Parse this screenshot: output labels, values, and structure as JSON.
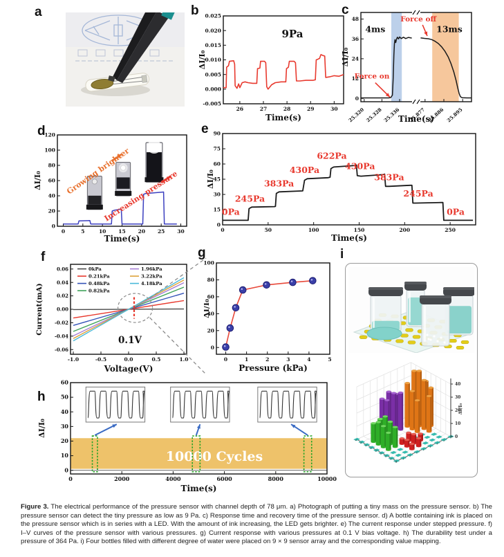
{
  "caption": {
    "label": "Figure 3.",
    "text": "  The electrical performance of the pressure sensor with channel depth of 78 μm. a) Photograph of putting a tiny mass on the pressure sensor. b) The pressure sensor can detect the tiny pressure as low as 9 Pa. c) Response time and recovery time of the pressure sensor. d) A bottle containing ink is placed on the pressure sensor which is in series with a LED. With the amount of ink increasing, the LED gets brighter. e) The current response under stepped pressure. f) I–V curves of the pressure sensor with various pressures. g) Current response with various pressures at 0.1 V bias voltage. h) The durability test under a pressure of 364 Pa. i) Four bottles filled with different degree of water were placed on 9 × 9 sensor array and the corresponding value mapping."
  },
  "panel_labels": {
    "a": "a",
    "b": "b",
    "c": "c",
    "d": "d",
    "e": "e",
    "f": "f",
    "g": "g",
    "h": "h",
    "i": "i"
  },
  "chart_data": [
    {
      "panel": "b",
      "type": "line",
      "title": "9Pa",
      "xlabel": "Time(s)",
      "ylabel": "ΔI/I₀",
      "xlim": [
        25.3,
        30.4
      ],
      "ylim": [
        -0.005,
        0.025
      ],
      "xticks": [
        26,
        27,
        28,
        29,
        30
      ],
      "yticks": [
        -0.005,
        0,
        0.005,
        0.01,
        0.015,
        0.02,
        0.025
      ],
      "ytick_labels": [
        "-0.005",
        "0.000",
        "0.005",
        "0.010",
        "0.015",
        "0.020",
        "0.025"
      ],
      "color": "#e8392e",
      "points": [
        [
          25.3,
          0.0005
        ],
        [
          25.42,
          0.0005
        ],
        [
          25.44,
          0.0075
        ],
        [
          25.52,
          0.008
        ],
        [
          25.56,
          0.0095
        ],
        [
          25.74,
          0.0097
        ],
        [
          25.78,
          0.0085
        ],
        [
          25.8,
          0.0012
        ],
        [
          25.88,
          0.0003
        ],
        [
          25.95,
          0.0018
        ],
        [
          26.0,
          0.0005
        ],
        [
          26.1,
          0.0022
        ],
        [
          26.22,
          0.0025
        ],
        [
          26.35,
          0.0022
        ],
        [
          26.55,
          0.002
        ],
        [
          26.72,
          0.002
        ],
        [
          26.75,
          0.007
        ],
        [
          26.85,
          0.0072
        ],
        [
          26.88,
          0.0095
        ],
        [
          27.05,
          0.0095
        ],
        [
          27.1,
          0.009
        ],
        [
          27.14,
          0.0008
        ],
        [
          27.2,
          0.0
        ],
        [
          27.35,
          0.0015
        ],
        [
          27.5,
          0.0022
        ],
        [
          27.75,
          0.0025
        ],
        [
          27.95,
          0.0025
        ],
        [
          27.98,
          0.007
        ],
        [
          28.06,
          0.0075
        ],
        [
          28.1,
          0.0095
        ],
        [
          28.3,
          0.0095
        ],
        [
          28.36,
          0.009
        ],
        [
          28.4,
          0.0028
        ],
        [
          28.55,
          0.0028
        ],
        [
          28.8,
          0.003
        ],
        [
          29.1,
          0.003
        ],
        [
          29.2,
          0.0032
        ],
        [
          29.24,
          0.01
        ],
        [
          29.3,
          0.0102
        ],
        [
          29.38,
          0.0105
        ],
        [
          29.44,
          0.0118
        ],
        [
          29.52,
          0.0115
        ],
        [
          29.6,
          0.0113
        ],
        [
          29.64,
          0.004
        ],
        [
          29.8,
          0.0042
        ],
        [
          30.0,
          0.0046
        ],
        [
          30.2,
          0.0044
        ],
        [
          30.4,
          0.005
        ]
      ]
    },
    {
      "panel": "c",
      "type": "line-broken-axis",
      "xlabel": "Time(s)",
      "ylabel": "ΔI/I₀",
      "ylim": [
        -2,
        52
      ],
      "yticks": [
        0,
        12,
        24,
        36,
        48
      ],
      "xtick_labels": [
        "25.320",
        "25.328",
        "25.336",
        "25.877",
        "25.886",
        "25.895"
      ],
      "xticks_fx": [
        0.03,
        0.19,
        0.35,
        0.58,
        0.75,
        0.92
      ],
      "rise_time_label": "4ms",
      "fall_time_label": "13ms",
      "force_on_label": "Force on",
      "force_off_label": "Force off",
      "line_color": "#1a1a1a",
      "annotation_color": "#e8392e",
      "regions": [
        {
          "fx0": 0.275,
          "fx1": 0.37,
          "color": "#bcd0ea"
        },
        {
          "fx0": 0.645,
          "fx1": 0.885,
          "color": "#f6c79c"
        }
      ],
      "seg1": [
        [
          0,
          0.3
        ],
        [
          0.25,
          0.3
        ],
        [
          0.27,
          0.5
        ],
        [
          0.285,
          2
        ],
        [
          0.292,
          12
        ],
        [
          0.298,
          26
        ],
        [
          0.303,
          33
        ],
        [
          0.308,
          35.5
        ],
        [
          0.315,
          33.8
        ],
        [
          0.322,
          35.8
        ],
        [
          0.33,
          37
        ],
        [
          0.34,
          36
        ],
        [
          0.35,
          37.2
        ],
        [
          0.365,
          36.2
        ],
        [
          0.385,
          37
        ],
        [
          0.405,
          36.2
        ],
        [
          0.43,
          36.9
        ],
        [
          0.46,
          36.5
        ]
      ],
      "seg2": [
        [
          0.54,
          36.6
        ],
        [
          0.575,
          36.3
        ],
        [
          0.61,
          36.1
        ],
        [
          0.64,
          35.6
        ],
        [
          0.67,
          34.6
        ],
        [
          0.7,
          33.2
        ],
        [
          0.73,
          31.2
        ],
        [
          0.76,
          28.5
        ],
        [
          0.79,
          25
        ],
        [
          0.815,
          21
        ],
        [
          0.84,
          16
        ],
        [
          0.86,
          11
        ],
        [
          0.875,
          6.5
        ],
        [
          0.888,
          3
        ],
        [
          0.9,
          1
        ],
        [
          0.915,
          0.4
        ],
        [
          0.96,
          0.3
        ],
        [
          1.0,
          0.3
        ]
      ]
    },
    {
      "panel": "d",
      "type": "line",
      "xlabel": "Time(s)",
      "ylabel": "ΔI/I₀",
      "xlim": [
        -1.5,
        31.5
      ],
      "ylim": [
        0,
        120
      ],
      "xticks": [
        0,
        5,
        10,
        15,
        20,
        25,
        30
      ],
      "yticks": [
        0,
        20,
        40,
        60,
        80,
        100,
        120
      ],
      "color": "#3b3fbf",
      "points": [
        [
          0,
          3
        ],
        [
          3.8,
          3
        ],
        [
          4.0,
          7
        ],
        [
          6.8,
          7.5
        ],
        [
          7.0,
          3
        ],
        [
          12.3,
          3
        ],
        [
          12.5,
          20
        ],
        [
          13,
          21
        ],
        [
          14.8,
          22.5
        ],
        [
          15,
          3
        ],
        [
          20.3,
          3
        ],
        [
          20.5,
          42
        ],
        [
          21,
          43
        ],
        [
          25.6,
          45
        ],
        [
          25.8,
          3
        ],
        [
          29,
          3
        ]
      ],
      "annotations": [
        {
          "text": "Growing brighter",
          "color": "#e8702d"
        },
        {
          "text": "Increasing pressure",
          "color": "#e8392e"
        }
      ],
      "bottles": [
        {
          "cx": 8,
          "y0": 22,
          "y1": 66,
          "mode": "dim"
        },
        {
          "cx": 15.3,
          "y0": 40,
          "y1": 84,
          "mode": "medium"
        },
        {
          "cx": 23.2,
          "y0": 58,
          "y1": 110,
          "mode": "bright"
        }
      ]
    },
    {
      "panel": "e",
      "type": "line",
      "xlabel": "Time(s)",
      "ylabel": "ΔI/I₀",
      "xlim": [
        0,
        278
      ],
      "ylim": [
        0,
        90
      ],
      "xticks": [
        0,
        50,
        100,
        150,
        200,
        250
      ],
      "yticks": [
        0,
        15,
        30,
        45,
        60,
        75,
        90
      ],
      "color": "#1a1a1a",
      "label_color": "#e8392e",
      "points": [
        [
          0,
          4.5
        ],
        [
          28,
          4.5
        ],
        [
          29,
          16
        ],
        [
          32,
          17.5
        ],
        [
          57,
          18
        ],
        [
          58,
          18.2
        ],
        [
          59,
          31
        ],
        [
          62,
          32.5
        ],
        [
          88,
          33.5
        ],
        [
          90,
          44
        ],
        [
          93,
          45.5
        ],
        [
          116,
          46.5
        ],
        [
          118,
          47
        ],
        [
          119,
          55.5
        ],
        [
          122,
          57
        ],
        [
          145,
          58.5
        ],
        [
          147,
          59
        ],
        [
          148,
          48.5
        ],
        [
          152,
          48
        ],
        [
          176,
          49.5
        ],
        [
          178,
          50
        ],
        [
          179,
          38
        ],
        [
          183,
          38
        ],
        [
          206,
          39
        ],
        [
          208,
          39
        ],
        [
          209,
          21.5
        ],
        [
          212,
          21.5
        ],
        [
          240,
          22
        ],
        [
          242,
          22
        ],
        [
          243,
          4.5
        ],
        [
          246,
          4.5
        ],
        [
          275,
          4.5
        ]
      ],
      "step_labels": [
        {
          "text": "0Pa",
          "x": 9,
          "y": 10
        },
        {
          "text": "245Pa",
          "x": 30,
          "y": 23
        },
        {
          "text": "383Pa",
          "x": 62,
          "y": 38
        },
        {
          "text": "430Pa",
          "x": 90,
          "y": 51
        },
        {
          "text": "622Pa",
          "x": 120,
          "y": 65
        },
        {
          "text": "430Pa",
          "x": 151,
          "y": 55
        },
        {
          "text": "383Pa",
          "x": 183,
          "y": 44
        },
        {
          "text": "245Pa",
          "x": 215,
          "y": 28
        },
        {
          "text": "0Pa",
          "x": 256,
          "y": 10
        }
      ]
    },
    {
      "panel": "f",
      "type": "line",
      "xlabel": "Voltage(V)",
      "ylabel": "Current(mA)",
      "xlim": [
        -1.05,
        1.05
      ],
      "ylim": [
        -0.067,
        0.067
      ],
      "xticks": [
        -1.0,
        -0.5,
        0.0,
        0.5,
        1.0
      ],
      "xtick_labels": [
        "-1.0",
        "-0.5",
        "0.0",
        "0.5",
        "1.0"
      ],
      "yticks": [
        -0.06,
        -0.04,
        -0.02,
        0,
        0.02,
        0.04,
        0.06
      ],
      "ytick_labels": [
        "-0.06",
        "-0.04",
        "-0.02",
        "0.00",
        "0.02",
        "0.04",
        "0.06"
      ],
      "bias_label": "0.1V",
      "series": [
        {
          "name": "0kPa",
          "color": "#4a4a4a",
          "current_at_1V": 0.0005
        },
        {
          "name": "0.21kPa",
          "color": "#e8392e",
          "current_at_1V": 0.013
        },
        {
          "name": "0.48kPa",
          "color": "#3353b7",
          "current_at_1V": 0.024
        },
        {
          "name": "0.82kPa",
          "color": "#3fa35a",
          "current_at_1V": 0.033
        },
        {
          "name": "1.96kPa",
          "color": "#a77fd4",
          "current_at_1V": 0.0395
        },
        {
          "name": "3.22kPa",
          "color": "#dda23a",
          "current_at_1V": 0.0435
        },
        {
          "name": "4.18kPa",
          "color": "#49b9d9",
          "current_at_1V": 0.047
        }
      ]
    },
    {
      "panel": "g",
      "type": "scatter-line",
      "xlabel": "Pressure (kPa)",
      "ylabel": "ΔI/I₀",
      "xlim": [
        -0.45,
        5
      ],
      "ylim": [
        -8,
        100
      ],
      "xticks": [
        0,
        1,
        2,
        3,
        4,
        5
      ],
      "yticks": [
        0,
        20,
        40,
        60,
        80,
        100
      ],
      "line_color": "#e8493a",
      "marker_color": "#3a3fa8",
      "points": [
        [
          0,
          0.5
        ],
        [
          0.21,
          23
        ],
        [
          0.48,
          47
        ],
        [
          0.82,
          68
        ],
        [
          1.96,
          74
        ],
        [
          3.22,
          77
        ],
        [
          4.18,
          79
        ]
      ]
    },
    {
      "panel": "h",
      "type": "cycling-band",
      "xlabel": "Time(s)",
      "ylabel": "ΔI/I₀",
      "xlim": [
        0,
        10000
      ],
      "ylim": [
        -2.5,
        60
      ],
      "xticks": [
        0,
        2000,
        4000,
        6000,
        8000,
        10000
      ],
      "yticks": [
        0,
        10,
        20,
        30,
        40,
        50,
        60
      ],
      "band": {
        "y0": 1,
        "y1": 22,
        "color": "#eec26a"
      },
      "cycles_label": "10000 Cycles",
      "marker_boxes_x": [
        [
          850,
          1050
        ],
        [
          4750,
          5050
        ],
        [
          9100,
          9400
        ]
      ],
      "insets_x": [
        [
          600,
          2900
        ],
        [
          3900,
          6200
        ],
        [
          7300,
          9600
        ]
      ],
      "inset_y": [
        33,
        57
      ],
      "marker_color": "#28a428",
      "arrow_color": "#3a6bc4"
    },
    {
      "panel": "i",
      "type": "3d-bar",
      "zlabel": "ΔI/I₀",
      "zticks": [
        0,
        10,
        20,
        30,
        40
      ],
      "array_size": "9 × 9",
      "clusters": [
        {
          "color": "#2fae28",
          "top": "#70d860",
          "bars": [
            [
              2,
              1,
              14
            ],
            [
              3,
              1,
              17
            ],
            [
              4,
              1,
              16
            ],
            [
              2,
              2,
              15
            ],
            [
              3,
              2,
              19
            ],
            [
              4,
              2,
              17
            ],
            [
              5,
              2,
              15
            ],
            [
              5,
              1,
              13
            ]
          ]
        },
        {
          "color": "#7a2fa6",
          "top": "#a55fd0",
          "bars": [
            [
              1,
              3,
              26
            ],
            [
              1,
              4,
              29
            ],
            [
              2,
              3,
              27
            ],
            [
              2,
              4,
              30
            ],
            [
              1,
              5,
              25
            ],
            [
              2,
              5,
              28
            ]
          ]
        },
        {
          "color": "#cf1f1f",
          "top": "#e85a50",
          "bars": [
            [
              5,
              3,
              4
            ],
            [
              5,
              4,
              6
            ],
            [
              6,
              3,
              5
            ],
            [
              6,
              4,
              7
            ],
            [
              6,
              5,
              5
            ],
            [
              7,
              4,
              6
            ],
            [
              7,
              3,
              4
            ]
          ]
        },
        {
          "color": "#df7516",
          "top": "#f0a040",
          "bars": [
            [
              2,
              6,
              33
            ],
            [
              2,
              7,
              40
            ],
            [
              3,
              6,
              29
            ],
            [
              3,
              7,
              42
            ],
            [
              4,
              7,
              37
            ],
            [
              3,
              8,
              32
            ],
            [
              4,
              8,
              29
            ],
            [
              5,
              7,
              27
            ],
            [
              4,
              6,
              24
            ]
          ]
        }
      ],
      "floor_color": "#2cb8ac",
      "floor_cells": [
        [
          0,
          0
        ],
        [
          1,
          0
        ],
        [
          2,
          0
        ],
        [
          3,
          0
        ],
        [
          4,
          0
        ],
        [
          5,
          0
        ],
        [
          6,
          0
        ],
        [
          7,
          0
        ],
        [
          8,
          0
        ],
        [
          8,
          1
        ],
        [
          8,
          2
        ],
        [
          8,
          3
        ],
        [
          8,
          4
        ],
        [
          8,
          5
        ],
        [
          8,
          6
        ],
        [
          8,
          7
        ],
        [
          8,
          8
        ],
        [
          7,
          5
        ],
        [
          7,
          6
        ],
        [
          6,
          6
        ],
        [
          5,
          5
        ],
        [
          5,
          6
        ],
        [
          7,
          7
        ],
        [
          6,
          7
        ],
        [
          7,
          2
        ],
        [
          6,
          2
        ],
        [
          6,
          1
        ],
        [
          7,
          1
        ]
      ]
    }
  ]
}
